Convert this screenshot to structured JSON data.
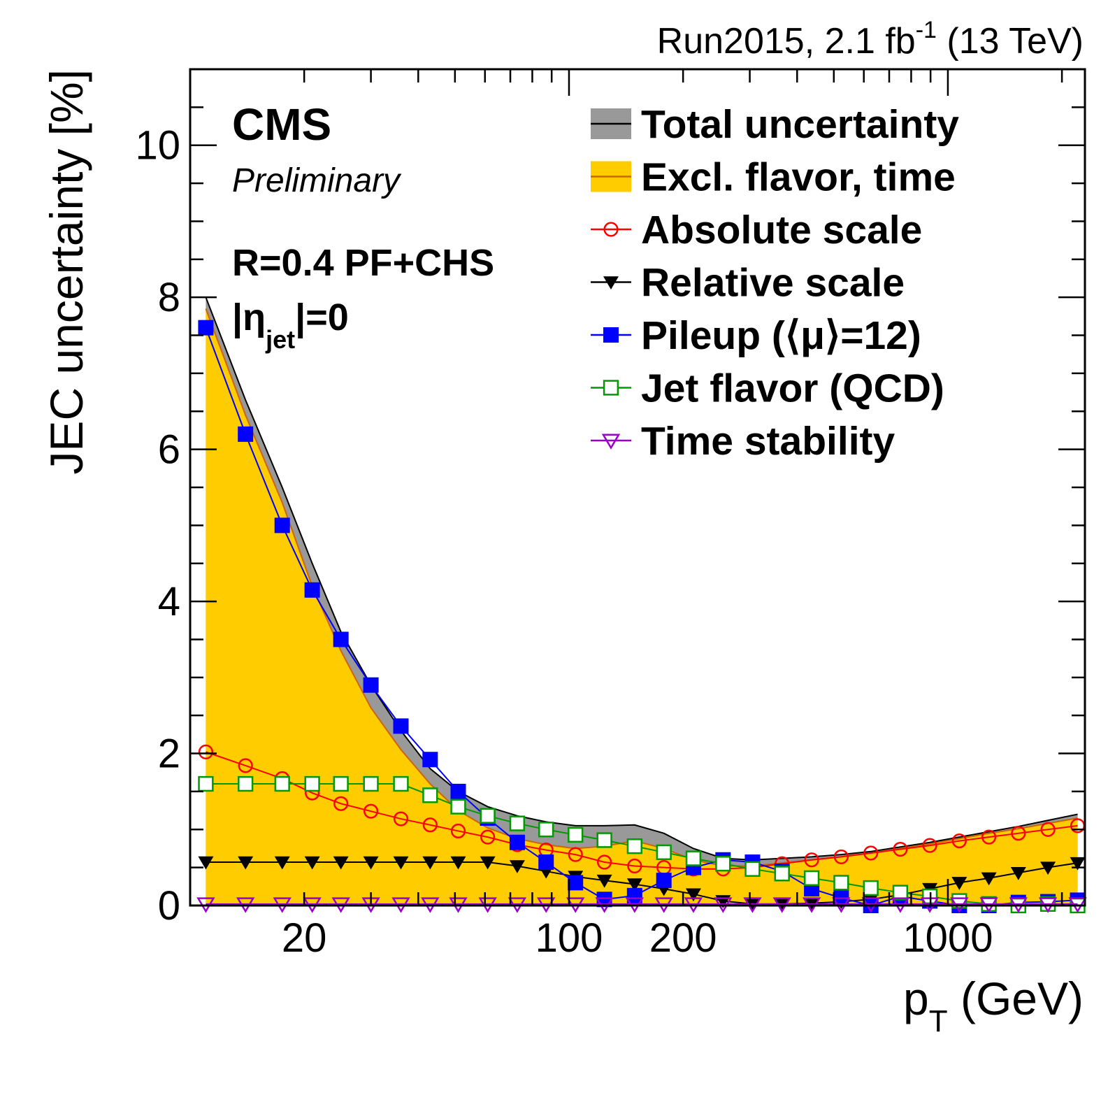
{
  "chart_data": {
    "type": "line",
    "lumi": {
      "run": "Run2015, 2.1 fb",
      "sup": "-1",
      "energy": " (13 TeV)"
    },
    "cms": "CMS",
    "preliminary": "Preliminary",
    "algo": "R=0.4 PF+CHS",
    "eta": {
      "pre": "|η",
      "sub": "jet",
      "post": "|=0"
    },
    "xlabel": {
      "main": "p",
      "sub": "T",
      "rest": " (GeV)"
    },
    "ylabel": "JEC uncertainty [%]",
    "xscale": "log",
    "xlim": [
      10,
      2300
    ],
    "ylim": [
      0,
      11
    ],
    "xticks": [
      {
        "v": 20,
        "label": "20"
      },
      {
        "v": 100,
        "label": "100"
      },
      {
        "v": 200,
        "label": "200"
      },
      {
        "v": 1000,
        "label": "1000"
      }
    ],
    "yticks": [
      {
        "v": 0,
        "label": "0"
      },
      {
        "v": 2,
        "label": "2"
      },
      {
        "v": 4,
        "label": "4"
      },
      {
        "v": 6,
        "label": "6"
      },
      {
        "v": 8,
        "label": "8"
      },
      {
        "v": 10,
        "label": "10"
      }
    ],
    "grid": false,
    "legend_position": "top-right",
    "x": [
      11,
      14,
      17.5,
      21,
      25,
      30,
      36,
      43,
      51,
      61,
      73,
      87,
      104,
      124,
      149,
      178,
      213,
      255,
      305,
      365,
      437,
      523,
      626,
      749,
      896,
      1072,
      1283,
      1535,
      1837,
      2200
    ],
    "total": {
      "x": [
        11,
        14,
        17.5,
        21,
        25,
        30,
        36,
        43,
        51,
        61,
        73,
        87,
        104,
        124,
        149,
        178,
        213,
        255,
        305,
        365,
        437,
        523,
        626,
        749,
        896,
        1072,
        1283,
        1535,
        1837,
        2200
      ],
      "values": [
        8.0,
        6.65,
        5.5,
        4.5,
        3.6,
        2.9,
        2.3,
        1.8,
        1.5,
        1.3,
        1.18,
        1.1,
        1.05,
        1.05,
        1.06,
        0.95,
        0.75,
        0.62,
        0.6,
        0.62,
        0.64,
        0.67,
        0.71,
        0.77,
        0.83,
        0.9,
        0.97,
        1.04,
        1.12,
        1.2
      ]
    },
    "excl": {
      "x": [
        11,
        14,
        17.5,
        21,
        25,
        30,
        36,
        43,
        51,
        61,
        73,
        87,
        104,
        124,
        149,
        178,
        213,
        255,
        305,
        365,
        437,
        523,
        626,
        749,
        896,
        1072,
        1283,
        1535,
        1837,
        2200
      ],
      "values": [
        7.85,
        6.45,
        5.3,
        4.2,
        3.35,
        2.6,
        2.05,
        1.6,
        1.25,
        1.02,
        0.88,
        0.8,
        0.75,
        0.78,
        0.85,
        0.75,
        0.6,
        0.52,
        0.52,
        0.56,
        0.6,
        0.64,
        0.69,
        0.75,
        0.81,
        0.88,
        0.95,
        1.01,
        1.08,
        1.15
      ]
    },
    "series": [
      {
        "name": "Absolute scale",
        "color": "#ff0000",
        "marker": "open-circle",
        "x": [
          11,
          14,
          17.5,
          21,
          25,
          30,
          36,
          43,
          51,
          61,
          73,
          87,
          104,
          124,
          149,
          178,
          213,
          255,
          305,
          365,
          437,
          523,
          626,
          749,
          896,
          1072,
          1283,
          1535,
          1837,
          2200
        ],
        "values": [
          2.02,
          1.84,
          1.67,
          1.48,
          1.34,
          1.24,
          1.14,
          1.06,
          0.98,
          0.9,
          0.8,
          0.73,
          0.67,
          0.57,
          0.52,
          0.5,
          0.48,
          0.48,
          0.5,
          0.55,
          0.6,
          0.64,
          0.69,
          0.74,
          0.79,
          0.85,
          0.9,
          0.95,
          1.0,
          1.05
        ]
      },
      {
        "name": "Relative scale",
        "color": "#000000",
        "marker": "filled-triangle-down",
        "x": [
          11,
          14,
          17.5,
          21,
          25,
          30,
          36,
          43,
          51,
          61,
          73,
          87,
          104,
          124,
          149,
          178,
          213,
          255,
          305,
          365,
          437,
          523,
          626,
          749,
          896,
          1072,
          1283,
          1535,
          1837,
          2200
        ],
        "values": [
          0.57,
          0.57,
          0.57,
          0.57,
          0.57,
          0.57,
          0.57,
          0.57,
          0.57,
          0.57,
          0.52,
          0.45,
          0.38,
          0.33,
          0.28,
          0.22,
          0.15,
          0.06,
          0.02,
          0.02,
          0.03,
          0.05,
          0.08,
          0.14,
          0.22,
          0.3,
          0.36,
          0.43,
          0.5,
          0.56
        ]
      },
      {
        "name": "Pileup (⟨μ⟩=12)",
        "color": "#0000ff",
        "marker": "filled-square",
        "x": [
          11,
          14,
          17.5,
          21,
          25,
          30,
          36,
          43,
          51,
          61,
          73,
          87,
          104,
          124,
          149,
          178,
          213,
          255,
          305,
          365,
          437,
          523,
          626,
          749,
          896,
          1072,
          1283,
          1535,
          1837,
          2200
        ],
        "values": [
          7.6,
          6.2,
          5.0,
          4.15,
          3.5,
          2.9,
          2.36,
          1.92,
          1.5,
          1.15,
          0.83,
          0.57,
          0.3,
          0.08,
          0.13,
          0.33,
          0.5,
          0.6,
          0.57,
          0.45,
          0.22,
          0.1,
          0.0,
          0.12,
          0.06,
          0.0,
          0.0,
          0.04,
          0.05,
          0.07
        ]
      },
      {
        "name": "Jet flavor (QCD)",
        "color": "#009900",
        "marker": "open-square",
        "x": [
          11,
          14,
          17.5,
          21,
          25,
          30,
          36,
          43,
          51,
          61,
          73,
          87,
          104,
          124,
          149,
          178,
          213,
          255,
          305,
          365,
          437,
          523,
          626,
          749,
          896,
          1072,
          1283,
          1535,
          1837,
          2200
        ],
        "values": [
          1.6,
          1.6,
          1.6,
          1.6,
          1.6,
          1.6,
          1.6,
          1.45,
          1.3,
          1.18,
          1.08,
          1.0,
          0.93,
          0.86,
          0.78,
          0.7,
          0.62,
          0.55,
          0.48,
          0.42,
          0.36,
          0.3,
          0.23,
          0.17,
          0.12,
          0.06,
          0.02,
          0.0,
          0.02,
          0.0
        ]
      },
      {
        "name": "Time stability",
        "color": "#9900cc",
        "marker": "open-triangle-down",
        "x": [
          11,
          14,
          17.5,
          21,
          25,
          30,
          36,
          43,
          51,
          61,
          73,
          87,
          104,
          124,
          149,
          178,
          213,
          255,
          305,
          365,
          437,
          523,
          626,
          749,
          896,
          1072,
          1283,
          1535,
          1837,
          2200
        ],
        "values": [
          0.02,
          0.02,
          0.02,
          0.02,
          0.02,
          0.02,
          0.02,
          0.02,
          0.02,
          0.02,
          0.02,
          0.02,
          0.02,
          0.02,
          0.02,
          0.02,
          0.02,
          0.02,
          0.02,
          0.02,
          0.02,
          0.02,
          0.02,
          0.02,
          0.02,
          0.02,
          0.02,
          0.02,
          0.02,
          0.02
        ]
      }
    ],
    "legend": [
      {
        "key": "total",
        "label": "Total uncertainty",
        "fill": "#999999",
        "line": "#000000",
        "kind": "box"
      },
      {
        "key": "excl",
        "label": "Excl. flavor, time",
        "fill": "#ffcc00",
        "line": "#cc6600",
        "kind": "box"
      },
      {
        "key": "abs",
        "label": "Absolute scale",
        "color": "#ff0000",
        "marker": "open-circle",
        "kind": "marker"
      },
      {
        "key": "rel",
        "label": "Relative scale",
        "color": "#000000",
        "marker": "filled-triangle-down",
        "kind": "marker"
      },
      {
        "key": "pu",
        "label": "Pileup (⟨μ⟩=12)",
        "color": "#0000ff",
        "marker": "filled-square",
        "kind": "marker"
      },
      {
        "key": "flav",
        "label": "Jet flavor (QCD)",
        "color": "#009900",
        "marker": "open-square",
        "kind": "marker"
      },
      {
        "key": "time",
        "label": "Time stability",
        "color": "#9900cc",
        "marker": "open-triangle-down",
        "kind": "marker"
      }
    ]
  }
}
